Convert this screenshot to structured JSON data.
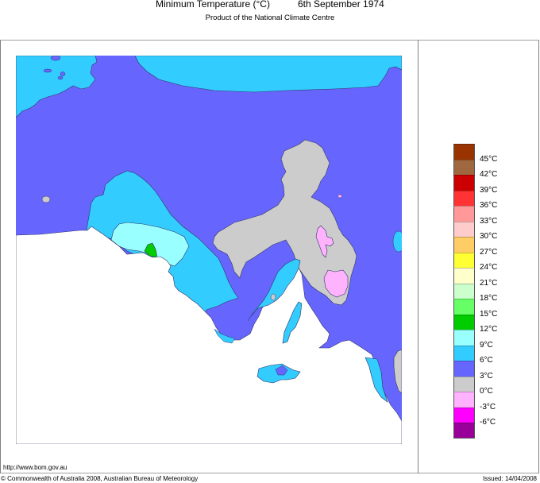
{
  "header": {
    "title": "Minimum Temperature (°C)",
    "date": "6th September 1974",
    "subtitle": "Product of the National Climate Centre"
  },
  "footer": {
    "url": "http://www.bom.gov.au",
    "copyright": "© Commonwealth of Australia 2008, Australian Bureau of Meteorology",
    "issued": "Issued: 14/04/2008"
  },
  "legend": {
    "bands": [
      {
        "color": "#993300",
        "range": ">45"
      },
      {
        "color": "#a0683f",
        "range": "42-45"
      },
      {
        "color": "#cc0000",
        "range": "39-42"
      },
      {
        "color": "#ff3333",
        "range": "36-39"
      },
      {
        "color": "#ff9999",
        "range": "33-36"
      },
      {
        "color": "#ffcccc",
        "range": "30-33"
      },
      {
        "color": "#ffcc66",
        "range": "27-30"
      },
      {
        "color": "#ffff33",
        "range": "24-27"
      },
      {
        "color": "#ffffcc",
        "range": "21-24"
      },
      {
        "color": "#ccffcc",
        "range": "18-21"
      },
      {
        "color": "#66ff66",
        "range": "15-18"
      },
      {
        "color": "#00cc00",
        "range": "12-15"
      },
      {
        "color": "#99ffff",
        "range": "9-12"
      },
      {
        "color": "#33ccff",
        "range": "6-9"
      },
      {
        "color": "#6666ff",
        "range": "3-6"
      },
      {
        "color": "#cccccc",
        "range": "0-3"
      },
      {
        "color": "#ffb3ff",
        "range": "-3-0"
      },
      {
        "color": "#ff00ff",
        "range": "-6--3"
      },
      {
        "color": "#990099",
        "range": "<-6"
      }
    ],
    "labels": [
      "45°C",
      "42°C",
      "39°C",
      "36°C",
      "33°C",
      "30°C",
      "27°C",
      "24°C",
      "21°C",
      "18°C",
      "15°C",
      "12°C",
      "9°C",
      "6°C",
      "3°C",
      "0°C",
      "-3°C",
      "-6°C"
    ]
  },
  "map": {
    "region": "South Australia",
    "colors": {
      "ocean": "#ffffff",
      "band_3_6": "#6666ff",
      "band_6_9": "#33ccff",
      "band_9_12": "#99ffff",
      "band_12_15": "#00cc00",
      "band_0_3": "#cccccc",
      "band_neg3_0": "#ffb3ff",
      "outline": "#333366"
    }
  }
}
